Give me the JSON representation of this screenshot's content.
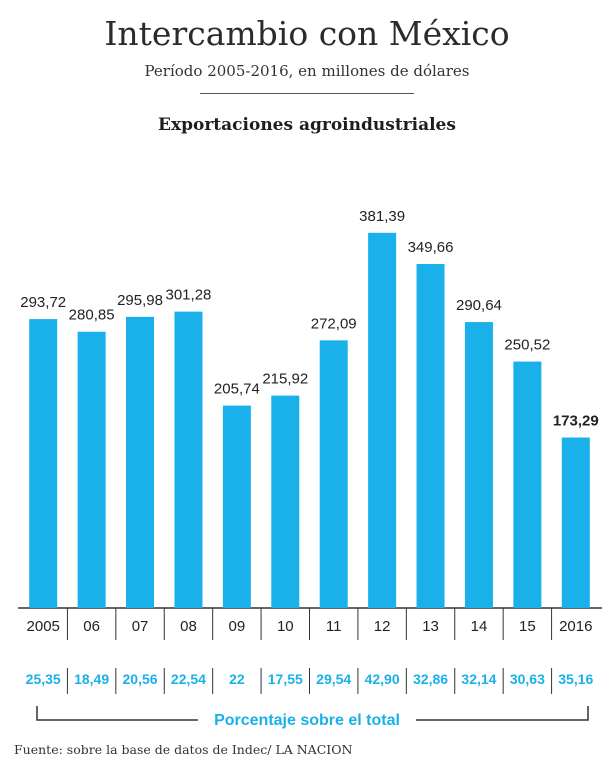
{
  "header": {
    "title": "Intercambio con México",
    "subtitle": "Período 2005-2016, en millones de dólares"
  },
  "chart_data": {
    "type": "bar",
    "title": "Exportaciones agroindustriales",
    "categories": [
      "2005",
      "06",
      "07",
      "08",
      "09",
      "10",
      "11",
      "12",
      "13",
      "14",
      "15",
      "2016"
    ],
    "values": [
      293.72,
      280.85,
      295.98,
      301.28,
      205.74,
      215.92,
      272.09,
      381.39,
      349.66,
      290.64,
      250.52,
      173.29
    ],
    "value_labels": [
      "293,72",
      "280,85",
      "295,98",
      "301,28",
      "205,74",
      "215,92",
      "272,09",
      "381,39",
      "349,66",
      "290,64",
      "250,52",
      "173,29"
    ],
    "percent_labels": [
      "25,35",
      "18,49",
      "20,56",
      "22,54",
      "22",
      "17,55",
      "29,54",
      "42,90",
      "32,86",
      "32,14",
      "30,63",
      "35,16"
    ],
    "percent_caption": "Porcentaje sobre el total",
    "bar_color": "#1ab0ea",
    "percent_color": "#1ab0ea",
    "highlight_last_label_bold": true
  },
  "footer": {
    "source": "Fuente: sobre la base de datos de Indec/ LA NACION"
  }
}
